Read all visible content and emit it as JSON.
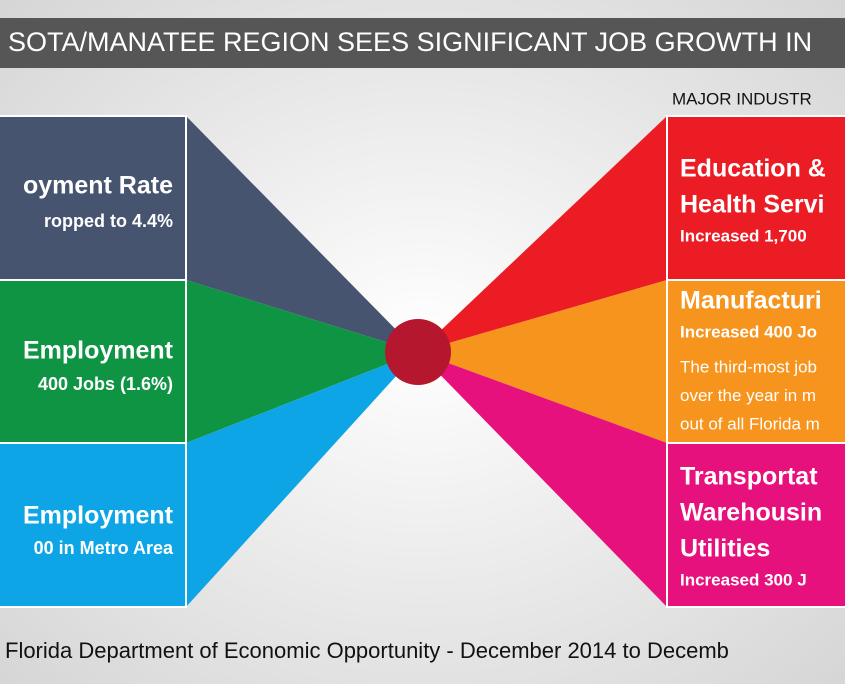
{
  "title": "SOTA/MANATEE REGION SEES SIGNIFICANT JOB GROWTH IN",
  "major_label": "MAJOR INDUSTR",
  "left_panels": [
    {
      "heading": "oyment Rate",
      "detail": "ropped to 4.4%"
    },
    {
      "heading": "Employment",
      "detail": "400 Jobs (1.6%)"
    },
    {
      "heading": "Employment",
      "detail": "00 in Metro Area"
    }
  ],
  "right_panels": [
    {
      "heading_lines": [
        "Education &",
        "Health Servi"
      ],
      "detail": "Increased 1,700",
      "note_lines": []
    },
    {
      "heading_lines": [
        "Manufacturi"
      ],
      "detail": "Increased 400 Jo",
      "note_lines": [
        "The third-most job",
        "over the year in m",
        "out of all Florida m"
      ]
    },
    {
      "heading_lines": [
        "Transportat",
        "Warehousin",
        "Utilities"
      ],
      "detail": "Increased 300 J",
      "note_lines": []
    }
  ],
  "source": "Florida Department of Economic Opportunity - December 2014 to Decemb"
}
